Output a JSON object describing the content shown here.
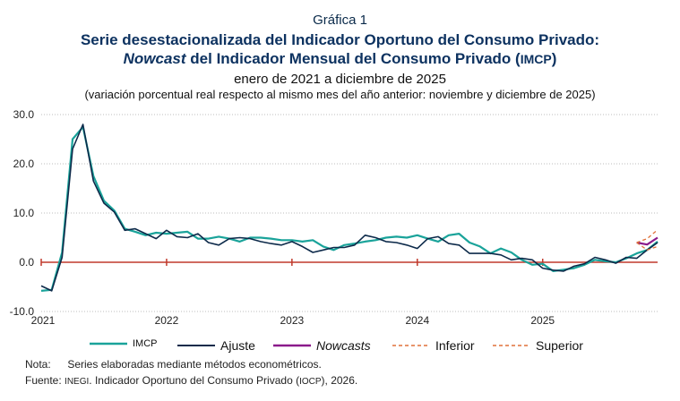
{
  "header": {
    "label": "Gráfica 1",
    "line1": "Serie desestacionalizada del Indicador Oportuno del Consumo Privado:",
    "line2_italic": "Nowcast",
    "line2_rest": " del Indicador Mensual del Consumo Privado (",
    "line2_abbr": "IMCP",
    "line2_close": ")",
    "period": "enero de 2021 a diciembre de 2025",
    "note": "(variación porcentual real respecto al mismo mes del año anterior: noviembre y diciembre de 2025)"
  },
  "legend": {
    "imcp": "IMCP",
    "ajuste": "Ajuste",
    "nowcasts": "Nowcasts",
    "inferior": "Inferior",
    "superior": "Superior"
  },
  "footer": {
    "nota_label": "Nota:",
    "nota_text": "Series elaboradas mediante métodos econométricos.",
    "fuente_label": "Fuente:",
    "fuente_org": "INEGI",
    "fuente_text_a": ". Indicador Oportuno del Consumo Privado (",
    "fuente_abbr": "IOCP",
    "fuente_text_b": "), 2026."
  },
  "colors": {
    "imcp": "#1aa39a",
    "ajuste": "#0d2a4a",
    "nowcasts": "#8b1a8b",
    "bounds": "#e0703a",
    "zero_line": "#c0392b",
    "grid": "#bdbdbd"
  },
  "chart_data": {
    "type": "line",
    "x_start": "2021-01",
    "x_end": "2025-12",
    "x_ticks": [
      "2021",
      "2022",
      "2023",
      "2024",
      "2025"
    ],
    "y_ticks": [
      "30.0",
      "20.0",
      "10.0",
      "0.0",
      "-10.0"
    ],
    "ylim": [
      -10,
      30
    ],
    "grid": "horizontal dotted",
    "series": [
      {
        "name": "IMCP",
        "start": "2021-01",
        "values": [
          -5.8,
          -5.6,
          2.0,
          25.0,
          27.5,
          17.5,
          12.5,
          10.5,
          6.8,
          6.2,
          5.5,
          6.0,
          5.8,
          6.0,
          6.2,
          4.8,
          4.8,
          5.2,
          4.8,
          4.2,
          5.0,
          5.0,
          4.8,
          4.5,
          4.5,
          4.2,
          4.5,
          3.2,
          2.5,
          3.5,
          3.8,
          4.2,
          4.5,
          5.0,
          5.2,
          5.0,
          5.5,
          4.8,
          4.2,
          5.5,
          5.8,
          4.0,
          3.2,
          1.8,
          2.8,
          2.0,
          0.5,
          -0.5,
          -0.3,
          -1.8,
          -1.5,
          -1.2,
          -0.5,
          0.5,
          0.2,
          0.0,
          0.8,
          1.8,
          2.5,
          4.2
        ]
      },
      {
        "name": "Ajuste",
        "start": "2021-01",
        "values": [
          -4.8,
          -5.8,
          1.0,
          23.0,
          28.0,
          16.5,
          12.0,
          10.2,
          6.5,
          6.8,
          5.8,
          4.8,
          6.5,
          5.2,
          5.0,
          5.8,
          4.0,
          3.5,
          4.8,
          5.0,
          4.8,
          4.2,
          3.8,
          3.5,
          4.2,
          3.2,
          2.0,
          2.5,
          3.0,
          3.0,
          3.5,
          5.5,
          5.0,
          4.2,
          4.0,
          3.5,
          2.8,
          4.8,
          5.2,
          3.8,
          3.5,
          1.8,
          1.8,
          1.8,
          1.5,
          0.5,
          0.8,
          0.5,
          -1.2,
          -1.6,
          -1.8,
          -0.8,
          -0.3,
          1.0,
          0.5,
          -0.2,
          1.0,
          0.8,
          2.5,
          4.0
        ]
      },
      {
        "name": "Nowcasts",
        "start": "2025-10",
        "values": [
          4.0,
          3.6,
          5.0
        ]
      },
      {
        "name": "Inferior",
        "start": "2025-10",
        "values": [
          4.0,
          2.5,
          3.2
        ]
      },
      {
        "name": "Superior",
        "start": "2025-10",
        "values": [
          4.0,
          4.8,
          6.6
        ]
      }
    ]
  }
}
